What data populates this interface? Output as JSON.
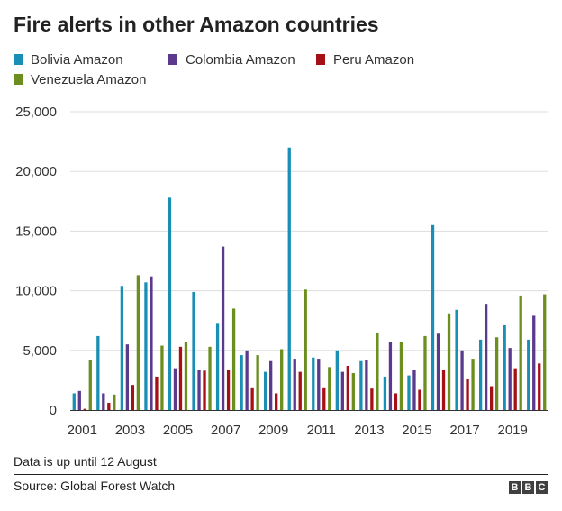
{
  "title": "Fire alerts in other Amazon countries",
  "legend": [
    {
      "label": "Bolivia Amazon",
      "color": "#1a8fb5"
    },
    {
      "label": "Colombia Amazon",
      "color": "#5b3a8e"
    },
    {
      "label": "Peru Amazon",
      "color": "#a50f15"
    },
    {
      "label": "Venezuela Amazon",
      "color": "#6b8e1f"
    }
  ],
  "footnote": "Data is up until 12 August",
  "source": "Source: Global Forest Watch",
  "logo": "BBC",
  "chart_data": {
    "type": "bar",
    "title": "Fire alerts in other Amazon countries",
    "xlabel": "",
    "ylabel": "",
    "categories": [
      "2001",
      "2002",
      "2003",
      "2004",
      "2005",
      "2006",
      "2007",
      "2008",
      "2009",
      "2010",
      "2011",
      "2012",
      "2013",
      "2014",
      "2015",
      "2016",
      "2017",
      "2018",
      "2019",
      "2020"
    ],
    "x_tick_labels": [
      "2001",
      "2003",
      "2005",
      "2007",
      "2009",
      "2011",
      "2013",
      "2015",
      "2017",
      "2019"
    ],
    "y_ticks": [
      0,
      5000,
      10000,
      15000,
      20000,
      25000
    ],
    "y_tick_labels": [
      "0",
      "5,000",
      "10,000",
      "15,000",
      "20,000",
      "25,000"
    ],
    "ylim": [
      0,
      25000
    ],
    "grid": "horizontal",
    "legend_position": "top",
    "series": [
      {
        "name": "Bolivia Amazon",
        "color": "#1a8fb5",
        "values": [
          1400,
          6200,
          10400,
          10700,
          17800,
          9900,
          7300,
          4600,
          3200,
          22000,
          4400,
          5000,
          4100,
          2800,
          2900,
          15500,
          8400,
          5900,
          7100,
          5900
        ]
      },
      {
        "name": "Colombia Amazon",
        "color": "#5b3a8e",
        "values": [
          1600,
          1400,
          5500,
          11200,
          3500,
          3400,
          13700,
          5000,
          4100,
          4300,
          4300,
          3200,
          4200,
          5700,
          3400,
          6400,
          5000,
          8900,
          5200,
          7900
        ]
      },
      {
        "name": "Peru Amazon",
        "color": "#a50f15",
        "values": [
          100,
          600,
          2100,
          2800,
          5300,
          3300,
          3400,
          1900,
          1400,
          3200,
          1900,
          3700,
          1800,
          1400,
          1700,
          3400,
          2600,
          2000,
          3500,
          3900
        ]
      },
      {
        "name": "Venezuela Amazon",
        "color": "#6b8e1f",
        "values": [
          4200,
          1300,
          11300,
          5400,
          5700,
          5300,
          8500,
          4600,
          5100,
          10100,
          3600,
          3100,
          6500,
          5700,
          6200,
          8100,
          4300,
          6100,
          9600,
          9700
        ]
      }
    ]
  }
}
